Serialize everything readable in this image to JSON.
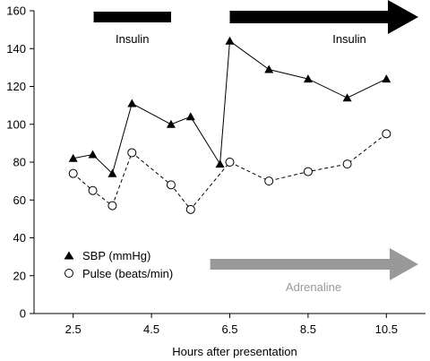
{
  "chart_data": {
    "type": "line",
    "xlabel": "Hours after presentation",
    "ylabel": "",
    "xlim": [
      1.5,
      11.5
    ],
    "ylim": [
      0,
      160
    ],
    "x_ticks": [
      2.5,
      4.5,
      6.5,
      8.5,
      10.5
    ],
    "x_tick_labels": [
      "2.5",
      "4.5",
      "6.5",
      "8.5",
      "10.5"
    ],
    "y_ticks": [
      0,
      20,
      40,
      60,
      80,
      100,
      120,
      140,
      160
    ],
    "y_tick_labels": [
      "0",
      "20",
      "40",
      "60",
      "80",
      "100",
      "120",
      "140",
      "160"
    ],
    "grid": false,
    "legend_position": "bottom-left",
    "series": [
      {
        "name": "SBP (mmHg)",
        "marker": "filled-triangle",
        "line_style": "solid",
        "color": "#000000",
        "points": [
          {
            "x": 2.5,
            "y": 82
          },
          {
            "x": 3.0,
            "y": 84
          },
          {
            "x": 3.5,
            "y": 74
          },
          {
            "x": 4.0,
            "y": 111
          },
          {
            "x": 5.0,
            "y": 100
          },
          {
            "x": 5.5,
            "y": 104
          },
          {
            "x": 6.25,
            "y": 79
          },
          {
            "x": 6.5,
            "y": 144
          },
          {
            "x": 7.5,
            "y": 129
          },
          {
            "x": 8.5,
            "y": 124
          },
          {
            "x": 9.5,
            "y": 114
          },
          {
            "x": 10.5,
            "y": 124
          }
        ]
      },
      {
        "name": "Pulse (beats/min)",
        "marker": "open-circle",
        "line_style": "dashed",
        "color": "#000000",
        "points": [
          {
            "x": 2.5,
            "y": 74
          },
          {
            "x": 3.0,
            "y": 65
          },
          {
            "x": 3.5,
            "y": 57
          },
          {
            "x": 4.0,
            "y": 85
          },
          {
            "x": 5.0,
            "y": 68
          },
          {
            "x": 5.5,
            "y": 55
          },
          {
            "x": 6.5,
            "y": 80
          },
          {
            "x": 7.5,
            "y": 70
          },
          {
            "x": 8.5,
            "y": 75
          },
          {
            "x": 9.5,
            "y": 79
          },
          {
            "x": 10.5,
            "y": 95
          }
        ]
      }
    ],
    "annotations": [
      {
        "label": "Insulin",
        "kind": "bar",
        "color": "#000000",
        "x_start": 3.0,
        "x_end": 5.0
      },
      {
        "label": "Insulin",
        "kind": "arrow",
        "color": "#000000",
        "x_start": 6.5,
        "x_end": 11.5
      },
      {
        "label": "Adrenaline",
        "kind": "arrow",
        "color": "#999999",
        "x_start": 6.0,
        "x_end": 11.5
      }
    ]
  }
}
